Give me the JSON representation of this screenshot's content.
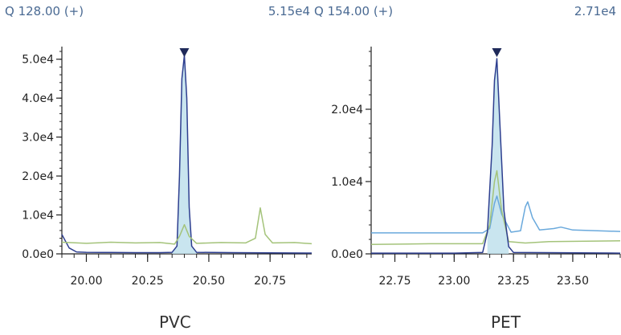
{
  "colors": {
    "blue_trace": "#2d3e8f",
    "green_trace": "#a4c37a",
    "lightblue_trace": "#6aa9dc",
    "peak_fill": "#bfe0ec",
    "header_text": "#4a6a93",
    "marker": "#1f2a5a"
  },
  "chart_data": [
    {
      "type": "line",
      "header_left": "Q 128.00 (+)",
      "header_right": "5.15e4",
      "title": "PVC",
      "xlim": [
        19.9,
        20.92
      ],
      "ylim": [
        0,
        52000
      ],
      "x_ticks": [
        20.0,
        20.25,
        20.5,
        20.75
      ],
      "x_tick_labels": [
        "20.00",
        "20.25",
        "20.50",
        "20.75"
      ],
      "y_ticks": [
        0,
        10000,
        20000,
        30000,
        40000,
        50000
      ],
      "y_tick_labels": [
        "0.0e0",
        "1.0e4",
        "2.0e4",
        "3.0e4",
        "4.0e4",
        "5.0e4"
      ],
      "peak_marker_x": 20.4,
      "fill_range": [
        20.35,
        20.45
      ],
      "series": [
        {
          "color_key": "blue_trace",
          "points": [
            [
              19.9,
              5000
            ],
            [
              19.93,
              1500
            ],
            [
              19.96,
              500
            ],
            [
              20.0,
              400
            ],
            [
              20.1,
              350
            ],
            [
              20.2,
              300
            ],
            [
              20.3,
              300
            ],
            [
              20.35,
              400
            ],
            [
              20.37,
              2000
            ],
            [
              20.38,
              20000
            ],
            [
              20.39,
              45000
            ],
            [
              20.4,
              51000
            ],
            [
              20.41,
              40000
            ],
            [
              20.42,
              12000
            ],
            [
              20.43,
              2000
            ],
            [
              20.45,
              400
            ],
            [
              20.6,
              300
            ],
            [
              20.92,
              200
            ]
          ]
        },
        {
          "color_key": "green_trace",
          "points": [
            [
              19.9,
              3000
            ],
            [
              20.0,
              2700
            ],
            [
              20.1,
              3000
            ],
            [
              20.2,
              2800
            ],
            [
              20.3,
              2900
            ],
            [
              20.36,
              2500
            ],
            [
              20.38,
              4500
            ],
            [
              20.4,
              7500
            ],
            [
              20.42,
              4500
            ],
            [
              20.45,
              2700
            ],
            [
              20.55,
              2900
            ],
            [
              20.65,
              2800
            ],
            [
              20.69,
              4000
            ],
            [
              20.71,
              11800
            ],
            [
              20.73,
              5000
            ],
            [
              20.76,
              2800
            ],
            [
              20.85,
              2900
            ],
            [
              20.92,
              2600
            ]
          ]
        }
      ]
    },
    {
      "type": "line",
      "header_left": "Q 154.00 (+)",
      "header_right": "2.71e4",
      "title": "PET",
      "xlim": [
        22.65,
        23.7
      ],
      "ylim": [
        0,
        28000
      ],
      "x_ticks": [
        22.75,
        23.0,
        23.25,
        23.5
      ],
      "x_tick_labels": [
        "22.75",
        "23.00",
        "23.25",
        "23.50"
      ],
      "y_ticks": [
        0,
        10000,
        20000
      ],
      "y_tick_labels": [
        "0.0e0",
        "1.0e4",
        "2.0e4"
      ],
      "peak_marker_x": 23.18,
      "fill_range": [
        23.13,
        23.24
      ],
      "series": [
        {
          "color_key": "lightblue_trace",
          "points": [
            [
              22.65,
              2900
            ],
            [
              22.9,
              2900
            ],
            [
              23.12,
              2900
            ],
            [
              23.15,
              3500
            ],
            [
              23.17,
              7000
            ],
            [
              23.18,
              8000
            ],
            [
              23.2,
              5500
            ],
            [
              23.24,
              3000
            ],
            [
              23.28,
              3200
            ],
            [
              23.3,
              6500
            ],
            [
              23.31,
              7200
            ],
            [
              23.33,
              5000
            ],
            [
              23.36,
              3300
            ],
            [
              23.42,
              3500
            ],
            [
              23.45,
              3700
            ],
            [
              23.5,
              3300
            ],
            [
              23.7,
              3100
            ]
          ]
        },
        {
          "color_key": "green_trace",
          "points": [
            [
              22.65,
              1300
            ],
            [
              22.9,
              1400
            ],
            [
              23.12,
              1400
            ],
            [
              23.15,
              4000
            ],
            [
              23.17,
              10000
            ],
            [
              23.18,
              11500
            ],
            [
              23.2,
              6000
            ],
            [
              23.23,
              1700
            ],
            [
              23.3,
              1500
            ],
            [
              23.4,
              1700
            ],
            [
              23.7,
              1800
            ]
          ]
        },
        {
          "color_key": "blue_trace",
          "points": [
            [
              22.65,
              100
            ],
            [
              23.0,
              100
            ],
            [
              23.12,
              200
            ],
            [
              23.14,
              3000
            ],
            [
              23.16,
              15000
            ],
            [
              23.17,
              24000
            ],
            [
              23.18,
              27000
            ],
            [
              23.19,
              20000
            ],
            [
              23.21,
              6000
            ],
            [
              23.23,
              1000
            ],
            [
              23.25,
              200
            ],
            [
              23.7,
              100
            ]
          ]
        }
      ]
    }
  ]
}
